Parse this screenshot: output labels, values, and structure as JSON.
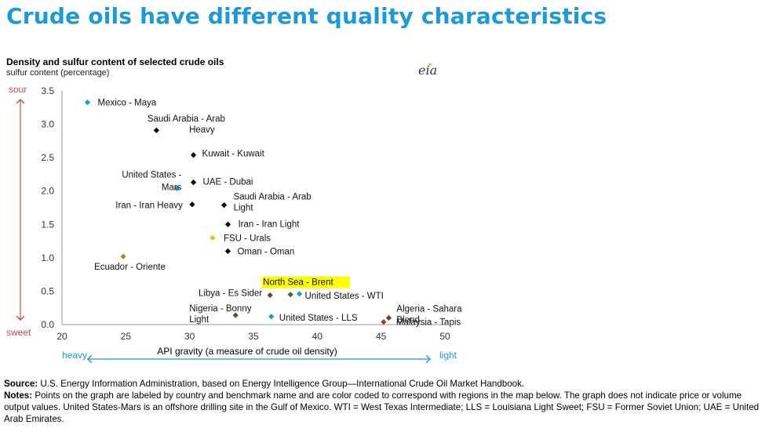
{
  "page": {
    "title": "Crude oils have different quality characteristics",
    "logo_text": "eia",
    "source_label": "Source:",
    "source_text": "U.S. Energy Information Administration, based on Energy Intelligence Group—International Crude Oil Market Handbook.",
    "notes_label": "Notes:",
    "notes_text": "Points on the graph are labeled by country and benchmark name and are color coded to correspond with regions in the map below. The graph does not indicate price or volume output values. United States-Mars is an offshore drilling site in the Gulf of Mexico. WTI = West Texas Intermediate; LLS = Louisiana Light Sweet; FSU = Former Soviet Union; UAE = United Arab Emirates."
  },
  "chart_data": {
    "type": "scatter",
    "title": "Density and sulfur content of selected crude oils",
    "ylabel": "sulfur content (percentage)",
    "xlabel": "API gravity (a measure of crude oil density)",
    "xlim": [
      20,
      50
    ],
    "ylim": [
      0,
      3.5
    ],
    "x_ticks": [
      "20",
      "25",
      "30",
      "35",
      "40",
      "45",
      "50"
    ],
    "y_ticks": [
      "0.0",
      "0.5",
      "1.0",
      "1.5",
      "2.0",
      "2.5",
      "3.0",
      "3.5"
    ],
    "y_axis_top_label": "sour",
    "y_axis_bottom_label": "sweet",
    "x_axis_left_label": "heavy",
    "x_axis_right_label": "light",
    "grid": false,
    "colors": {
      "americas": "#1a9ad6",
      "middle_east": "#000000",
      "eurasia": "#f0c000",
      "south_america": "#c08020",
      "africa": "#6b4a1a",
      "asia": "#9c3b3b",
      "europe": "#2e6e2e",
      "arrow": "#c0504d",
      "x_arrow": "#1a9ad6"
    },
    "points": [
      {
        "name": "Mexico - Maya",
        "x": 22.0,
        "y": 3.33,
        "color": "#1a9ad6"
      },
      {
        "name": "Saudi Arabia - Arab Heavy",
        "x": 27.4,
        "y": 2.91,
        "color": "#000000"
      },
      {
        "name": "Kuwait - Kuwait",
        "x": 30.3,
        "y": 2.54,
        "color": "#000000"
      },
      {
        "name": "United States - Mars",
        "x": 29.0,
        "y": 2.04,
        "color": "#1a9ad6"
      },
      {
        "name": "UAE - Dubai",
        "x": 30.3,
        "y": 2.13,
        "color": "#000000"
      },
      {
        "name": "Iran - Iran Heavy",
        "x": 30.2,
        "y": 1.8,
        "color": "#000000"
      },
      {
        "name": "Saudi Arabia - Arab Light",
        "x": 32.7,
        "y": 1.79,
        "color": "#000000"
      },
      {
        "name": "Iran - Iran Light",
        "x": 33.0,
        "y": 1.5,
        "color": "#000000"
      },
      {
        "name": "FSU - Urals",
        "x": 31.8,
        "y": 1.3,
        "color": "#f0c000"
      },
      {
        "name": "Oman - Oman",
        "x": 33.0,
        "y": 1.1,
        "color": "#000000"
      },
      {
        "name": "Ecuador - Oriente",
        "x": 24.8,
        "y": 1.02,
        "color": "#c08020"
      },
      {
        "name": "North Sea - Brent",
        "x": 37.9,
        "y": 0.45,
        "color": "#2e6e2e"
      },
      {
        "name": "Libya - Es Sider",
        "x": 36.3,
        "y": 0.44,
        "color": "#6b4a1a"
      },
      {
        "name": "United States - WTI",
        "x": 38.6,
        "y": 0.46,
        "color": "#1a9ad6"
      },
      {
        "name": "Nigeria - Bonny Light",
        "x": 33.6,
        "y": 0.14,
        "color": "#6b4a1a"
      },
      {
        "name": "United States - LLS",
        "x": 36.4,
        "y": 0.12,
        "color": "#1a9ad6"
      },
      {
        "name": "Algeria - Sahara Blend",
        "x": 45.6,
        "y": 0.1,
        "color": "#6b4a1a"
      },
      {
        "name": "Malaysia - Tapis",
        "x": 45.2,
        "y": 0.04,
        "color": "#9c3b3b"
      }
    ],
    "annotations": [
      {
        "lines": [
          "Mexico - Maya"
        ],
        "point": 0
      },
      {
        "lines": [
          "Saudi Arabia - Arab",
          "Heavy"
        ],
        "point": 1
      },
      {
        "lines": [
          "Kuwait - Kuwait"
        ],
        "point": 2
      },
      {
        "lines": [
          "United States -",
          "Mars"
        ],
        "point": 3
      },
      {
        "lines": [
          "UAE - Dubai"
        ],
        "point": 4
      },
      {
        "lines": [
          "Iran - Iran Heavy"
        ],
        "point": 5
      },
      {
        "lines": [
          "Saudi Arabia - Arab",
          "Light"
        ],
        "point": 6
      },
      {
        "lines": [
          "Iran - Iran Light"
        ],
        "point": 7
      },
      {
        "lines": [
          "FSU - Urals"
        ],
        "point": 8
      },
      {
        "lines": [
          "Oman - Oman"
        ],
        "point": 9
      },
      {
        "lines": [
          "Ecuador - Oriente"
        ],
        "point": 10
      },
      {
        "lines": [
          "North Sea - Brent"
        ],
        "point": 11,
        "highlight": "#ffff00"
      },
      {
        "lines": [
          "Libya - Es Sider"
        ],
        "point": 12
      },
      {
        "lines": [
          "United States - WTI"
        ],
        "point": 13
      },
      {
        "lines": [
          "Nigeria - Bonny",
          "Light"
        ],
        "point": 14
      },
      {
        "lines": [
          "United States - LLS"
        ],
        "point": 15
      },
      {
        "lines": [
          "Algeria - Sahara",
          "Blend"
        ],
        "point": 16
      },
      {
        "lines": [
          "Malaysia - Tapis"
        ],
        "point": 17
      }
    ]
  }
}
